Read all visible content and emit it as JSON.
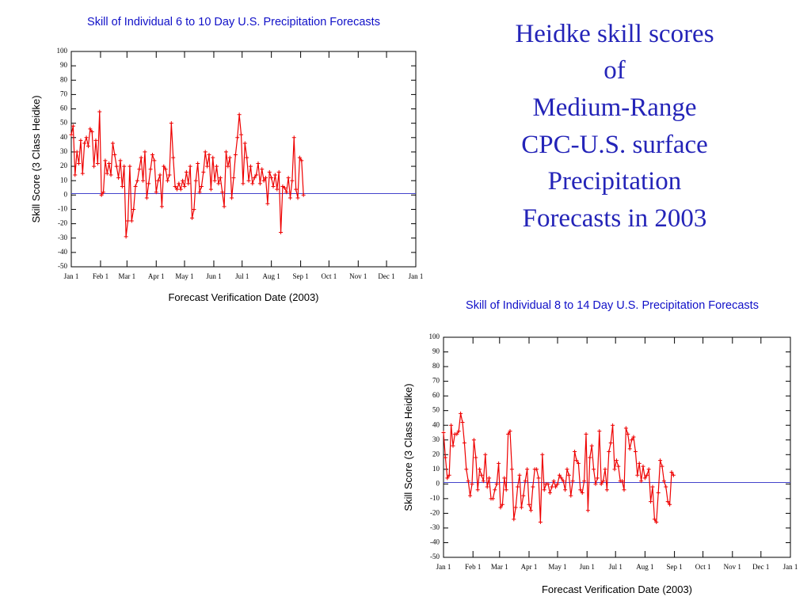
{
  "heading": [
    "Heidke skill scores",
    "of",
    "Medium-Range",
    "CPC-U.S. surface",
    "Precipitation",
    "Forecasts in 2003"
  ],
  "chart_data": [
    {
      "type": "line",
      "title": "Skill of Individual 6 to 10 Day U.S. Precipitation Forecasts",
      "xlabel": "Forecast Verification Date (2003)",
      "ylabel": "Skill Score (3 Class Heidke)",
      "xlim": [
        0,
        365
      ],
      "xticks": [
        {
          "value": 0,
          "label": "Jan 1"
        },
        {
          "value": 31,
          "label": "Feb 1"
        },
        {
          "value": 59,
          "label": "Mar 1"
        },
        {
          "value": 90,
          "label": "Apr 1"
        },
        {
          "value": 120,
          "label": "May 1"
        },
        {
          "value": 151,
          "label": "Jun 1"
        },
        {
          "value": 181,
          "label": "Jul 1"
        },
        {
          "value": 212,
          "label": "Aug 1"
        },
        {
          "value": 243,
          "label": "Sep 1"
        },
        {
          "value": 273,
          "label": "Oct 1"
        },
        {
          "value": 304,
          "label": "Nov 1"
        },
        {
          "value": 334,
          "label": "Dec 1"
        },
        {
          "value": 365,
          "label": "Jan 1"
        }
      ],
      "ylim": [
        -50,
        100
      ],
      "yticks": [
        -50,
        -40,
        -30,
        -20,
        -10,
        0,
        10,
        20,
        30,
        40,
        50,
        60,
        70,
        80,
        90,
        100
      ],
      "hline": 1,
      "hline_color": "#4444cc",
      "x": [
        0,
        2,
        4,
        6,
        8,
        10,
        12,
        14,
        16,
        18,
        20,
        22,
        24,
        26,
        28,
        30,
        32,
        34,
        36,
        38,
        40,
        42,
        44,
        46,
        48,
        50,
        52,
        54,
        56,
        58,
        60,
        62,
        64,
        66,
        68,
        70,
        72,
        74,
        76,
        78,
        80,
        82,
        84,
        86,
        88,
        90,
        92,
        94,
        96,
        98,
        100,
        102,
        104,
        106,
        108,
        110,
        112,
        114,
        116,
        118,
        120,
        122,
        124,
        126,
        128,
        130,
        132,
        134,
        136,
        138,
        140,
        142,
        144,
        146,
        148,
        150,
        152,
        154,
        156,
        158,
        160,
        162,
        164,
        166,
        168,
        170,
        172,
        174,
        176,
        178,
        180,
        182,
        184,
        186,
        188,
        190,
        192,
        194,
        196,
        198,
        200,
        202,
        204,
        206,
        208,
        210,
        212,
        214,
        216,
        218,
        220,
        222,
        224,
        226,
        228,
        230,
        232,
        234,
        236,
        238,
        240,
        242,
        244,
        246
      ],
      "series": [
        {
          "color": "#ee0000",
          "values": [
            42,
            48,
            14,
            30,
            22,
            38,
            15,
            36,
            40,
            34,
            46,
            44,
            20,
            38,
            22,
            58,
            0,
            2,
            24,
            15,
            22,
            14,
            36,
            28,
            20,
            12,
            24,
            6,
            20,
            -29,
            -18,
            20,
            -18,
            -10,
            6,
            10,
            18,
            26,
            10,
            30,
            -2,
            8,
            18,
            28,
            24,
            2,
            10,
            14,
            -8,
            20,
            18,
            10,
            14,
            50,
            26,
            6,
            4,
            8,
            4,
            10,
            6,
            16,
            8,
            20,
            -16,
            -10,
            10,
            22,
            2,
            6,
            16,
            30,
            20,
            28,
            4,
            26,
            10,
            20,
            8,
            12,
            2,
            -8,
            30,
            20,
            26,
            -2,
            12,
            28,
            40,
            56,
            42,
            8,
            36,
            26,
            10,
            20,
            8,
            12,
            14,
            22,
            8,
            18,
            10,
            12,
            -6,
            16,
            12,
            6,
            14,
            4,
            16,
            -26,
            6,
            5,
            2,
            12,
            -2,
            10,
            40,
            4,
            -2,
            26,
            24,
            0
          ]
        }
      ]
    },
    {
      "type": "line",
      "title": "Skill of Individual 8 to 14 Day U.S. Precipitation Forecasts",
      "xlabel": "Forecast Verification Date (2003)",
      "ylabel": "Skill Score (3 Class Heidke)",
      "xlim": [
        0,
        365
      ],
      "xticks": [
        {
          "value": 0,
          "label": "Jan 1"
        },
        {
          "value": 31,
          "label": "Feb 1"
        },
        {
          "value": 59,
          "label": "Mar 1"
        },
        {
          "value": 90,
          "label": "Apr 1"
        },
        {
          "value": 120,
          "label": "May 1"
        },
        {
          "value": 151,
          "label": "Jun 1"
        },
        {
          "value": 181,
          "label": "Jul 1"
        },
        {
          "value": 212,
          "label": "Aug 1"
        },
        {
          "value": 243,
          "label": "Sep 1"
        },
        {
          "value": 273,
          "label": "Oct 1"
        },
        {
          "value": 304,
          "label": "Nov 1"
        },
        {
          "value": 334,
          "label": "Dec 1"
        },
        {
          "value": 365,
          "label": "Jan 1"
        }
      ],
      "ylim": [
        -50,
        100
      ],
      "yticks": [
        -50,
        -40,
        -30,
        -20,
        -10,
        0,
        10,
        20,
        30,
        40,
        50,
        60,
        70,
        80,
        90,
        100
      ],
      "hline": 1,
      "hline_color": "#4444cc",
      "x": [
        0,
        2,
        4,
        6,
        8,
        10,
        12,
        14,
        16,
        18,
        20,
        22,
        24,
        26,
        28,
        30,
        32,
        34,
        36,
        38,
        40,
        42,
        44,
        46,
        48,
        50,
        52,
        54,
        56,
        58,
        60,
        62,
        64,
        66,
        68,
        70,
        72,
        74,
        76,
        78,
        80,
        82,
        84,
        86,
        88,
        90,
        92,
        94,
        96,
        98,
        100,
        102,
        104,
        106,
        108,
        110,
        112,
        114,
        116,
        118,
        120,
        122,
        124,
        126,
        128,
        130,
        132,
        134,
        136,
        138,
        140,
        142,
        144,
        146,
        148,
        150,
        152,
        154,
        156,
        158,
        160,
        162,
        164,
        166,
        168,
        170,
        172,
        174,
        176,
        178,
        180,
        182,
        184,
        186,
        188,
        190,
        192,
        194,
        196,
        198,
        200,
        202,
        204,
        206,
        208,
        210,
        212,
        214,
        216,
        218,
        220,
        222,
        224,
        226,
        228,
        230,
        232,
        234,
        236,
        238,
        240,
        242
      ],
      "series": [
        {
          "color": "#ee0000",
          "values": [
            35,
            18,
            4,
            6,
            40,
            26,
            34,
            34,
            36,
            48,
            42,
            28,
            10,
            2,
            -8,
            0,
            30,
            18,
            -4,
            10,
            6,
            2,
            20,
            -2,
            4,
            -10,
            -10,
            -4,
            0,
            14,
            -16,
            -14,
            4,
            -4,
            34,
            36,
            10,
            -24,
            -16,
            -2,
            6,
            -16,
            -8,
            2,
            10,
            -14,
            -18,
            -2,
            10,
            10,
            4,
            -26,
            20,
            -4,
            0,
            0,
            -6,
            -2,
            2,
            -2,
            0,
            6,
            4,
            2,
            -4,
            10,
            6,
            -8,
            2,
            22,
            16,
            14,
            -4,
            -6,
            2,
            34,
            -18,
            18,
            26,
            10,
            0,
            4,
            36,
            0,
            2,
            10,
            -4,
            22,
            28,
            40,
            10,
            16,
            12,
            2,
            2,
            -4,
            38,
            34,
            24,
            30,
            32,
            22,
            6,
            14,
            2,
            12,
            4,
            6,
            10,
            -12,
            -2,
            -24,
            -26,
            -6,
            16,
            12,
            2,
            -2,
            -12,
            -14,
            8,
            6
          ]
        }
      ]
    }
  ]
}
